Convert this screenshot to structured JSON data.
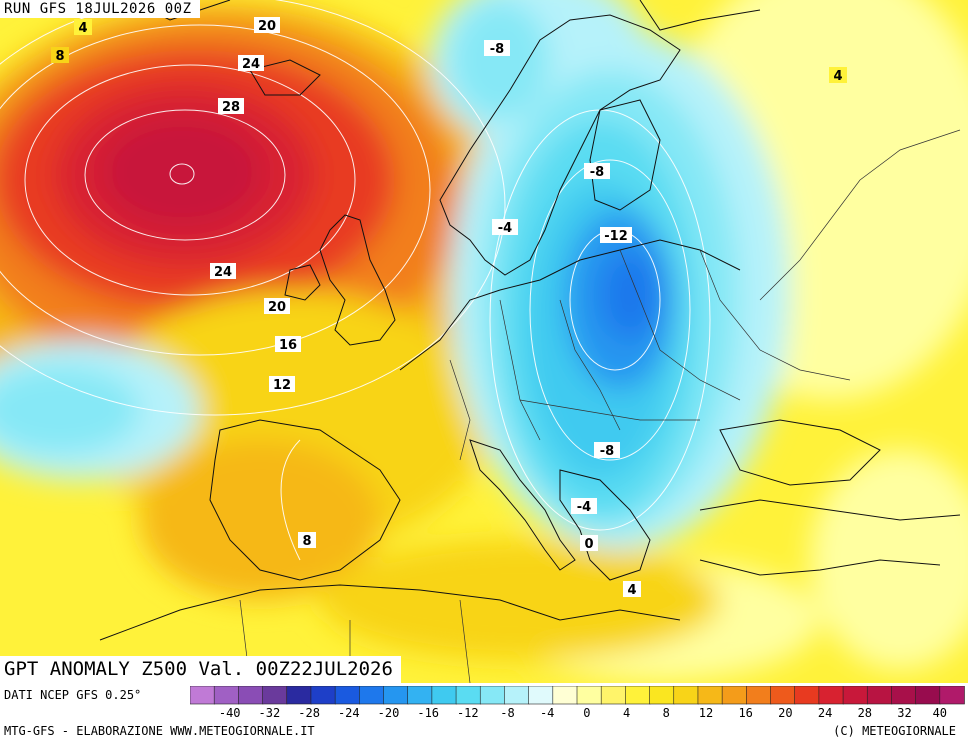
{
  "header": {
    "run_label": "RUN GFS 18JUL2026 00Z"
  },
  "title": "GPT ANOMALY Z500 Val. 00Z22JUL2026",
  "footer": {
    "source": "DATI NCEP GFS 0.25°",
    "credit": "MTG-GFS - ELABORAZIONE WWW.METEOGIORNALE.IT",
    "copyright": "(C) METEOGIORNALE"
  },
  "legend": {
    "tick_labels": [
      "-40",
      "-32",
      "-28",
      "-24",
      "-20",
      "-16",
      "-12",
      "-8",
      "-4",
      "0",
      "4",
      "8",
      "12",
      "16",
      "20",
      "24",
      "28",
      "32",
      "40"
    ],
    "colors": [
      "#c07ad6",
      "#a060c4",
      "#8a4db5",
      "#6a3a9c",
      "#2a2aa0",
      "#1e3fc8",
      "#1a5ae0",
      "#1e78ec",
      "#2596f0",
      "#33b2f2",
      "#3fcaf0",
      "#5adcf2",
      "#86e8f6",
      "#b6f2fa",
      "#e0fafc",
      "#ffffd4",
      "#ffffa0",
      "#fff46a",
      "#fff23a",
      "#fae620",
      "#f8d418",
      "#f6b818",
      "#f49c1a",
      "#f27e1c",
      "#ee5a1c",
      "#e83a20",
      "#d82230",
      "#c8183a",
      "#b81442",
      "#a8104a",
      "#980c4e",
      "#b01a6a"
    ]
  },
  "contour_labels": [
    {
      "text": "4"
    },
    {
      "text": "8"
    },
    {
      "text": "20"
    },
    {
      "text": "24"
    },
    {
      "text": "28"
    },
    {
      "text": "24"
    },
    {
      "text": "20"
    },
    {
      "text": "16"
    },
    {
      "text": "12"
    },
    {
      "text": "8"
    },
    {
      "text": "-8"
    },
    {
      "text": "-4"
    },
    {
      "text": "-8"
    },
    {
      "text": "-12"
    },
    {
      "text": "-8"
    },
    {
      "text": "-4"
    },
    {
      "text": "0"
    },
    {
      "text": "4"
    },
    {
      "text": "4"
    }
  ]
}
